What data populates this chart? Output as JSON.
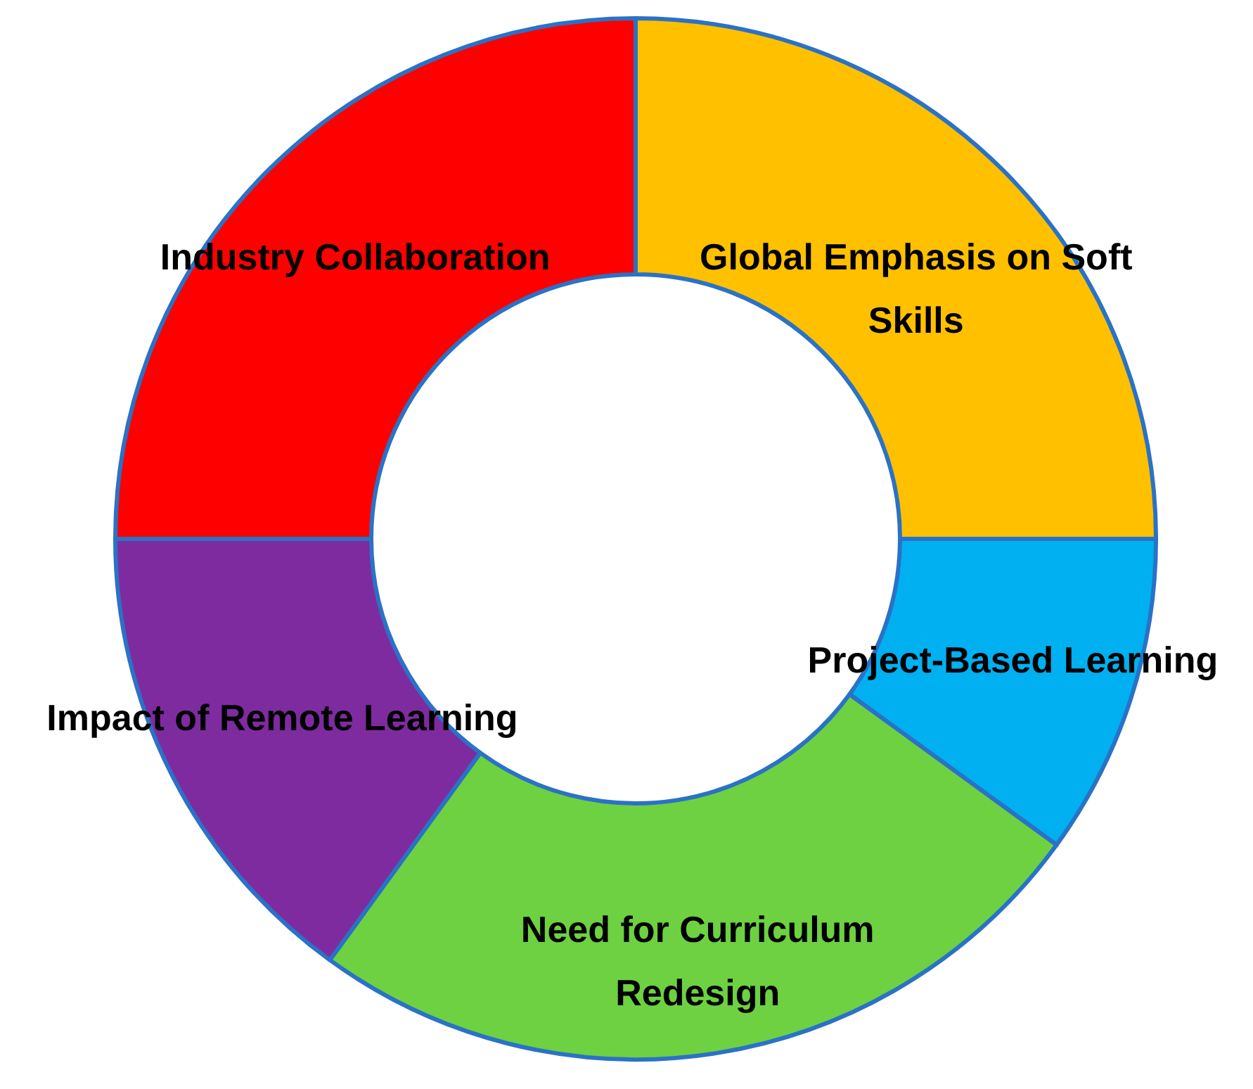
{
  "chart_data": {
    "type": "donut",
    "categories": [
      "Global Emphasis on Soft Skills",
      "Project-Based Learning",
      "Need for Curriculum Redesign",
      "Impact of Remote Learning",
      "Industry Collaboration"
    ],
    "values": [
      25,
      10,
      25,
      15,
      25
    ],
    "colors": [
      "#ffc000",
      "#00b0f0",
      "#6dd142",
      "#7e2ba0",
      "#ff0000"
    ]
  }
}
